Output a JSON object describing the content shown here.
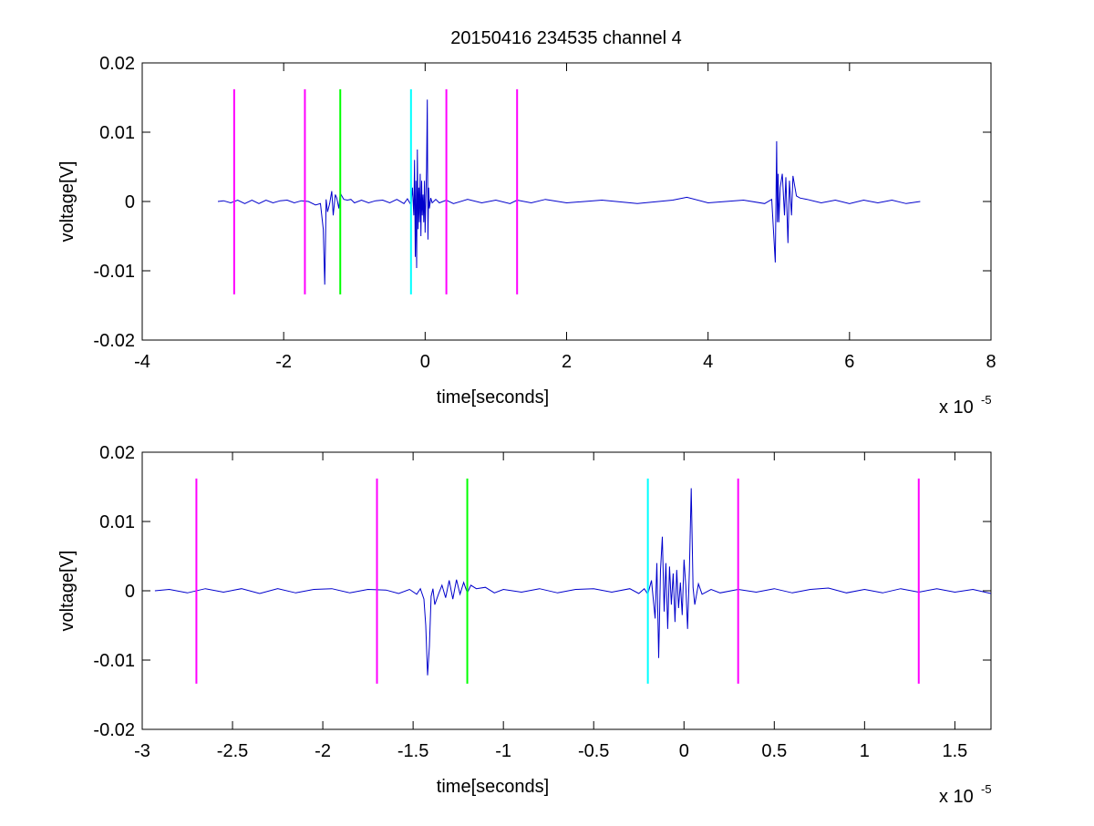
{
  "title": "20150416 234535 channel 4",
  "chart_data": [
    {
      "type": "line",
      "title": "20150416 234535 channel 4",
      "xlabel": "time[seconds]",
      "ylabel": "voltage[V]",
      "x_multiplier_label": "x 10",
      "x_multiplier_exponent": "-5",
      "xlim": [
        -4,
        8
      ],
      "ylim": [
        -0.02,
        0.02
      ],
      "xticks": [
        -4,
        -2,
        0,
        2,
        4,
        6,
        8
      ],
      "xtick_labels": [
        "-4",
        "-2",
        "0",
        "2",
        "4",
        "6",
        "8"
      ],
      "yticks": [
        -0.02,
        -0.01,
        0,
        0.01,
        0.02
      ],
      "ytick_labels": [
        "-0.02",
        "-0.01",
        "0",
        "0.01",
        "0.02"
      ],
      "grid": false,
      "series": [
        {
          "color": "#0000cc",
          "x": [
            -2.93,
            -2.85,
            -2.75,
            -2.65,
            -2.55,
            -2.45,
            -2.35,
            -2.25,
            -2.15,
            -2.05,
            -1.95,
            -1.85,
            -1.75,
            -1.65,
            -1.55,
            -1.48,
            -1.44,
            -1.42,
            -1.41,
            -1.4,
            -1.38,
            -1.35,
            -1.32,
            -1.3,
            -1.27,
            -1.25,
            -1.22,
            -1.2,
            -1.15,
            -1.1,
            -1.05,
            -1.0,
            -0.9,
            -0.8,
            -0.7,
            -0.6,
            -0.5,
            -0.4,
            -0.3,
            -0.25,
            -0.2,
            -0.18,
            -0.16,
            -0.15,
            -0.14,
            -0.13,
            -0.12,
            -0.11,
            -0.1,
            -0.09,
            -0.08,
            -0.07,
            -0.06,
            -0.05,
            -0.04,
            -0.03,
            -0.02,
            -0.01,
            0.0,
            0.02,
            0.03,
            0.04,
            0.05,
            0.06,
            0.08,
            0.1,
            0.15,
            0.2,
            0.3,
            0.4,
            0.6,
            0.8,
            1.0,
            1.2,
            1.3,
            1.5,
            1.7,
            2.0,
            2.5,
            3.0,
            3.5,
            3.7,
            4.0,
            4.5,
            4.8,
            4.9,
            4.95,
            4.97,
            4.98,
            4.99,
            5.0,
            5.02,
            5.05,
            5.08,
            5.1,
            5.13,
            5.15,
            5.18,
            5.2,
            5.25,
            5.3,
            5.4,
            5.6,
            5.8,
            6.0,
            6.2,
            6.4,
            6.6,
            6.8,
            7.0
          ],
          "y": [
            0.0,
            0.0001,
            -0.0002,
            0.0002,
            -0.0003,
            0.0002,
            -0.0003,
            0.0002,
            -0.0002,
            0.0001,
            0.0002,
            -0.0002,
            0.0001,
            0.0,
            -0.0005,
            -0.0003,
            -0.004,
            -0.012,
            -0.007,
            0.0003,
            -0.0015,
            -0.0003,
            0.0015,
            -0.002,
            0.001,
            0.0005,
            -0.001,
            0.0012,
            0.0003,
            0.0002,
            0.0003,
            -0.0002,
            0.0002,
            -0.0002,
            0.0001,
            0.0002,
            -0.0002,
            0.0003,
            -0.0003,
            0.0004,
            -0.0005,
            0.002,
            -0.002,
            0.006,
            -0.008,
            0.003,
            -0.0096,
            0.0075,
            -0.004,
            0.002,
            -0.003,
            0.004,
            -0.005,
            0.003,
            -0.002,
            0.001,
            -0.003,
            0.003,
            -0.0045,
            0.0048,
            0.0147,
            -0.0055,
            0.002,
            -0.001,
            0.0005,
            -0.0002,
            0.0003,
            -0.0002,
            0.0002,
            -0.0003,
            0.0003,
            -0.0002,
            0.0002,
            -0.0003,
            0.0002,
            -0.0002,
            0.0003,
            -0.0002,
            0.0002,
            -0.0003,
            0.0002,
            0.0006,
            -0.0002,
            0.0002,
            -0.0003,
            0.0003,
            -0.0088,
            0.0087,
            -0.003,
            0.004,
            -0.003,
            0.002,
            0.004,
            -0.002,
            0.0035,
            -0.006,
            0.003,
            -0.002,
            0.0037,
            0.0008,
            0.0005,
            0.0003,
            -0.0002,
            0.0002,
            -0.0003,
            0.0002,
            -0.0002,
            0.0002,
            -0.0003,
            0.0
          ]
        }
      ],
      "markers": [
        {
          "x": -2.7,
          "y0": -0.0134,
          "y1": 0.0162,
          "color": "#ff00ff"
        },
        {
          "x": -1.7,
          "y0": -0.0134,
          "y1": 0.0162,
          "color": "#ff00ff"
        },
        {
          "x": -1.2,
          "y0": -0.0134,
          "y1": 0.0162,
          "color": "#00ff00"
        },
        {
          "x": -0.2,
          "y0": -0.0134,
          "y1": 0.0162,
          "color": "#00ffff"
        },
        {
          "x": 0.3,
          "y0": -0.0134,
          "y1": 0.0162,
          "color": "#ff00ff"
        },
        {
          "x": 1.3,
          "y0": -0.0134,
          "y1": 0.0162,
          "color": "#ff00ff"
        }
      ]
    },
    {
      "type": "line",
      "title": "",
      "xlabel": "time[seconds]",
      "ylabel": "voltage[V]",
      "x_multiplier_label": "x 10",
      "x_multiplier_exponent": "-5",
      "xlim": [
        -3.0,
        1.7
      ],
      "ylim": [
        -0.02,
        0.02
      ],
      "xticks": [
        -3,
        -2.5,
        -2,
        -1.5,
        -1,
        -0.5,
        0,
        0.5,
        1,
        1.5
      ],
      "xtick_labels": [
        "-3",
        "-2.5",
        "-2",
        "-1.5",
        "-1",
        "-0.5",
        "0",
        "0.5",
        "1",
        "1.5"
      ],
      "yticks": [
        -0.02,
        -0.01,
        0,
        0.01,
        0.02
      ],
      "ytick_labels": [
        "-0.02",
        "-0.01",
        "0",
        "0.01",
        "0.02"
      ],
      "grid": false,
      "series": [
        {
          "color": "#0000cc",
          "x": [
            -2.93,
            -2.85,
            -2.75,
            -2.65,
            -2.55,
            -2.45,
            -2.35,
            -2.25,
            -2.15,
            -2.05,
            -1.95,
            -1.85,
            -1.75,
            -1.65,
            -1.58,
            -1.52,
            -1.48,
            -1.46,
            -1.44,
            -1.43,
            -1.42,
            -1.41,
            -1.4,
            -1.39,
            -1.38,
            -1.36,
            -1.34,
            -1.32,
            -1.3,
            -1.28,
            -1.26,
            -1.24,
            -1.22,
            -1.2,
            -1.18,
            -1.15,
            -1.1,
            -1.05,
            -1.0,
            -0.9,
            -0.8,
            -0.7,
            -0.6,
            -0.5,
            -0.4,
            -0.3,
            -0.25,
            -0.22,
            -0.2,
            -0.18,
            -0.16,
            -0.15,
            -0.14,
            -0.13,
            -0.12,
            -0.11,
            -0.1,
            -0.09,
            -0.08,
            -0.07,
            -0.06,
            -0.05,
            -0.04,
            -0.03,
            -0.02,
            -0.01,
            0.0,
            0.01,
            0.02,
            0.03,
            0.04,
            0.05,
            0.06,
            0.08,
            0.1,
            0.15,
            0.2,
            0.3,
            0.4,
            0.5,
            0.6,
            0.7,
            0.8,
            0.9,
            1.0,
            1.1,
            1.2,
            1.3,
            1.4,
            1.5,
            1.6,
            1.7
          ],
          "y": [
            0.0,
            0.0002,
            -0.0003,
            0.0003,
            -0.0002,
            0.0003,
            -0.0004,
            0.0003,
            -0.0003,
            0.0002,
            0.0003,
            -0.0003,
            0.0002,
            0.0001,
            -0.0004,
            0.0002,
            -0.0005,
            0.0003,
            -0.0012,
            -0.005,
            -0.0122,
            -0.008,
            -0.0008,
            0.0003,
            -0.002,
            -0.0005,
            0.0008,
            -0.001,
            0.0015,
            -0.0012,
            0.0016,
            -0.0005,
            0.0012,
            -0.0003,
            0.0008,
            0.0003,
            0.0005,
            -0.0003,
            0.0002,
            -0.0002,
            0.0003,
            -0.0003,
            0.0002,
            0.0003,
            -0.0002,
            0.0003,
            -0.0004,
            0.0003,
            -0.0005,
            0.0015,
            -0.004,
            0.004,
            -0.0097,
            0.003,
            0.0078,
            -0.003,
            0.004,
            -0.0055,
            0.0035,
            -0.002,
            0.0025,
            -0.0045,
            0.003,
            -0.0025,
            0.0012,
            -0.0035,
            0.0045,
            0.0008,
            -0.0055,
            0.003,
            0.0148,
            0.0005,
            -0.002,
            0.001,
            -0.0005,
            0.0002,
            -0.0003,
            0.0002,
            -0.0002,
            0.0003,
            -0.0003,
            0.0002,
            0.0004,
            -0.0003,
            0.0002,
            -0.0003,
            0.0003,
            -0.0002,
            0.0003,
            -0.0002,
            0.0002,
            -0.0004
          ]
        }
      ],
      "markers": [
        {
          "x": -2.7,
          "y0": -0.0134,
          "y1": 0.0162,
          "color": "#ff00ff"
        },
        {
          "x": -1.7,
          "y0": -0.0134,
          "y1": 0.0162,
          "color": "#ff00ff"
        },
        {
          "x": -1.2,
          "y0": -0.0134,
          "y1": 0.0162,
          "color": "#00ff00"
        },
        {
          "x": -0.2,
          "y0": -0.0134,
          "y1": 0.0162,
          "color": "#00ffff"
        },
        {
          "x": 0.3,
          "y0": -0.0134,
          "y1": 0.0162,
          "color": "#ff00ff"
        },
        {
          "x": 1.3,
          "y0": -0.0134,
          "y1": 0.0162,
          "color": "#ff00ff"
        }
      ]
    }
  ]
}
